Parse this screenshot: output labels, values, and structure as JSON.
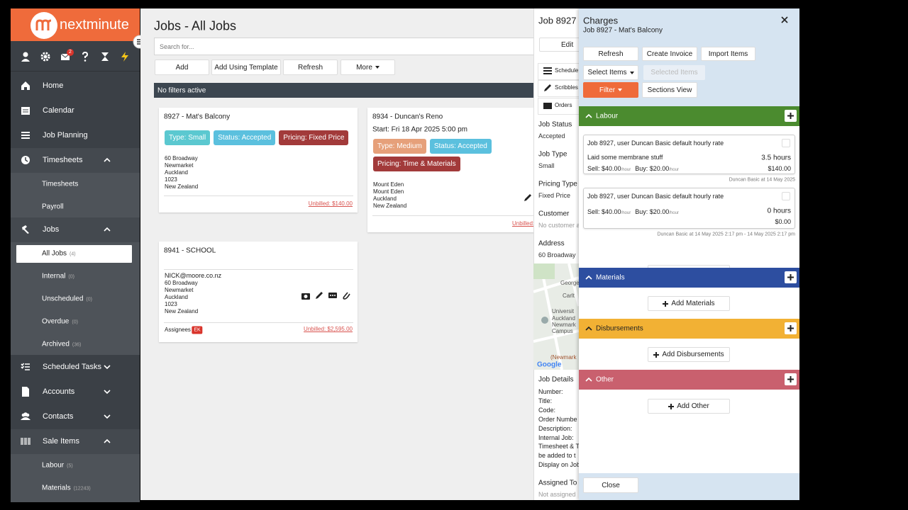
{
  "sidebar": {
    "logo": "nextminute",
    "notification_count": 2,
    "menu": [
      {
        "label": "Home"
      },
      {
        "label": "Calendar"
      },
      {
        "label": "Job Planning"
      },
      {
        "label": "Timesheets",
        "items": [
          {
            "label": "Timesheets"
          },
          {
            "label": "Payroll"
          }
        ]
      },
      {
        "label": "Jobs",
        "items": [
          {
            "label": "All Jobs",
            "count": "(4)"
          },
          {
            "label": "Internal",
            "count": "(0)"
          },
          {
            "label": "Unscheduled",
            "count": "(0)"
          },
          {
            "label": "Overdue",
            "count": "(0)"
          },
          {
            "label": "Archived",
            "count": "(36)"
          }
        ]
      },
      {
        "label": "Scheduled Tasks"
      },
      {
        "label": "Accounts"
      },
      {
        "label": "Contacts"
      },
      {
        "label": "Sale Items",
        "items": [
          {
            "label": "Labour",
            "count": "(5)"
          },
          {
            "label": "Materials",
            "count": "(12243)"
          }
        ]
      }
    ]
  },
  "main": {
    "title": "Jobs - All Jobs",
    "search_placeholder": "Search for...",
    "buttons": [
      "Add",
      "Add Using Template",
      "Refresh",
      "More"
    ],
    "filter_status": "No filters active",
    "cards": [
      {
        "title": "8927 - Mat's Balcony",
        "tags": [
          "Type: Small",
          "Status: Accepted",
          "Pricing: Fixed Price"
        ],
        "address": [
          "60 Broadway",
          "Newmarket",
          "Auckland",
          "1023",
          "New Zealand"
        ],
        "unbilled": "Unbilled: $140.00"
      },
      {
        "title": "8934 - Duncan's Reno",
        "start": "Start: Fri 18 Apr 2025 5:00 pm",
        "tags": [
          "Type: Medium",
          "Status: Accepted",
          "Pricing: Time & Materials"
        ],
        "address": [
          "Mount Eden",
          "Mount Eden",
          "Auckland",
          "New Zealand"
        ],
        "unbilled": "Unbilled:"
      },
      {
        "title": "8941 - SCHOOL",
        "email": "NICK@moore.co.nz",
        "address": [
          "60 Broadway",
          "Newmarket",
          "Auckland",
          "1023",
          "New Zealand"
        ],
        "assignees_label": "Assignees",
        "assignee": "EK",
        "unbilled": "Unbilled: $2,595.00"
      }
    ]
  },
  "job_panel": {
    "title": "Job 8927 -",
    "edit": "Edit",
    "tabs": [
      "Schedule",
      "Scribbles",
      "Orders"
    ],
    "fields": [
      {
        "label": "Job Status",
        "value": "Accepted"
      },
      {
        "label": "Job Type",
        "value": "Small"
      },
      {
        "label": "Pricing Type",
        "value": "Fixed Price"
      },
      {
        "label": "Customer",
        "value": "No customer a"
      },
      {
        "label": "Address",
        "value": "60 Broadway"
      }
    ],
    "map_labels": [
      "George",
      "Carlt",
      "Universit",
      "Auckland",
      "Newmark",
      "Campus",
      "(Newmark"
    ],
    "map_brand": "Google",
    "details_title": "Job Details",
    "details": [
      "Number:",
      "Title:",
      "Code:",
      "Order Numbe",
      "Description:",
      "Internal Job:",
      "Timesheet & T",
      "be added to t",
      "Display on Job"
    ],
    "assigned_label": "Assigned To",
    "assigned_value": "Not assigned"
  },
  "charges": {
    "title": "Charges",
    "subtitle": "Job 8927 - Mat's Balcony",
    "buttons": [
      "Refresh",
      "Create Invoice",
      "Import Items"
    ],
    "select_items": "Select Items",
    "selected_items": "Selected Items",
    "filter": "Filter",
    "sections_view": "Sections View",
    "sections": [
      {
        "name": "Labour",
        "add": "Add Labour",
        "items": [
          {
            "title": "Job 8927, user Duncan Basic default hourly rate",
            "description": "Laid some membrane stuff",
            "quantity": "3.5 hours",
            "sell": "Sell: $40.00",
            "sell_unit": "/hour",
            "buy": "Buy: $20.00",
            "buy_unit": "/hour",
            "total": "$140.00",
            "footnote": "Duncan Basic at 14 May 2025"
          },
          {
            "title": "Job 8927, user Duncan Basic default hourly rate",
            "quantity": "0 hours",
            "sell": "Sell: $40.00",
            "sell_unit": "/hour",
            "buy": "Buy: $20.00",
            "buy_unit": "/hour",
            "total": "$0.00",
            "footnote": "Duncan Basic at 14 May 2025 2:17 pm - 14 May 2025 2:17 pm"
          }
        ]
      },
      {
        "name": "Materials",
        "add": "Add Materials"
      },
      {
        "name": "Disbursements",
        "add": "Add Disbursements"
      },
      {
        "name": "Other",
        "add": "Add Other"
      }
    ],
    "close": "Close"
  }
}
